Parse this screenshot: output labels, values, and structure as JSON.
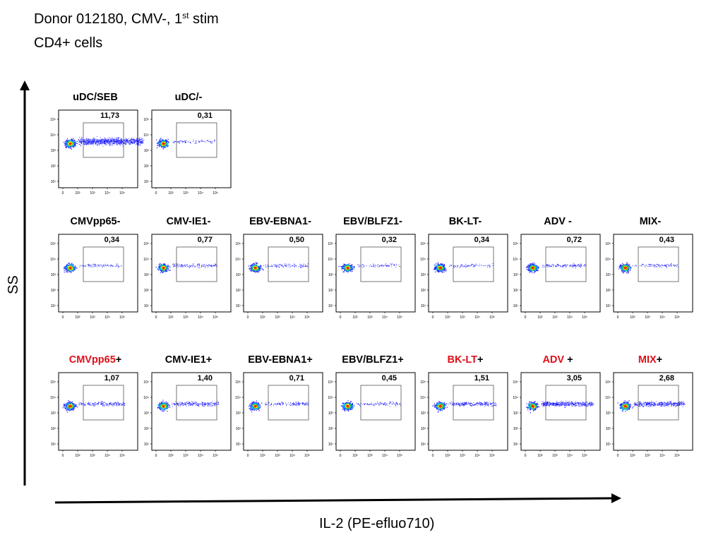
{
  "title": {
    "line1_prefix": "Donor 012180, CMV-, 1",
    "line1_sup": "st",
    "line1_suffix": " stim",
    "line2": "CD4+ cells"
  },
  "axes": {
    "y_label": "SS",
    "x_label": "IL-2 (PE-efluo710)",
    "y_ticks": [
      "10⁵",
      "10⁴",
      "10³",
      "10²",
      "10¹"
    ],
    "x_ticks": [
      "0",
      "10²",
      "10³",
      "10⁴",
      "10⁵"
    ]
  },
  "colors": {
    "highlight_label": "#e0101a",
    "density_low": "#1a1aff",
    "density_mid": "#33cc33",
    "density_high": "#ff2200"
  },
  "rows": [
    {
      "panels": [
        {
          "label_main": "uDC/SEB",
          "label_suffix": "",
          "highlight": false,
          "gate_value": "11,73",
          "gate_pct": 11.73
        },
        {
          "label_main": "uDC/-",
          "label_suffix": "",
          "highlight": false,
          "gate_value": "0,31",
          "gate_pct": 0.31
        }
      ]
    },
    {
      "panels": [
        {
          "label_main": "CMVpp65-",
          "label_suffix": "",
          "highlight": false,
          "gate_value": "0,34",
          "gate_pct": 0.34
        },
        {
          "label_main": "CMV-IE1-",
          "label_suffix": "",
          "highlight": false,
          "gate_value": "0,77",
          "gate_pct": 0.77
        },
        {
          "label_main": "EBV-EBNA1-",
          "label_suffix": "",
          "highlight": false,
          "gate_value": "0,50",
          "gate_pct": 0.5
        },
        {
          "label_main": "EBV/BLFZ1-",
          "label_suffix": "",
          "highlight": false,
          "gate_value": "0,32",
          "gate_pct": 0.32
        },
        {
          "label_main": "BK-LT-",
          "label_suffix": "",
          "highlight": false,
          "gate_value": "0,34",
          "gate_pct": 0.34
        },
        {
          "label_main": "ADV -",
          "label_suffix": "",
          "highlight": false,
          "gate_value": "0,72",
          "gate_pct": 0.72
        },
        {
          "label_main": "MIX-",
          "label_suffix": "",
          "highlight": false,
          "gate_value": "0,43",
          "gate_pct": 0.43
        }
      ]
    },
    {
      "panels": [
        {
          "label_main": "CMVpp65",
          "label_suffix": "+",
          "highlight": true,
          "gate_value": "1,07",
          "gate_pct": 1.07
        },
        {
          "label_main": "CMV-IE1+",
          "label_suffix": "",
          "highlight": false,
          "gate_value": "1,40",
          "gate_pct": 1.4
        },
        {
          "label_main": "EBV-EBNA1+",
          "label_suffix": "",
          "highlight": false,
          "gate_value": "0,71",
          "gate_pct": 0.71
        },
        {
          "label_main": "EBV/BLFZ1+",
          "label_suffix": "",
          "highlight": false,
          "gate_value": "0,45",
          "gate_pct": 0.45
        },
        {
          "label_main": "BK-LT",
          "label_suffix": "+",
          "highlight": true,
          "gate_value": "1,51",
          "gate_pct": 1.51
        },
        {
          "label_main": "ADV",
          "label_suffix": " +",
          "highlight": true,
          "gate_value": "3,05",
          "gate_pct": 3.05
        },
        {
          "label_main": "MIX",
          "label_suffix": "+",
          "highlight": true,
          "gate_value": "2,68",
          "gate_pct": 2.68
        }
      ]
    }
  ]
}
